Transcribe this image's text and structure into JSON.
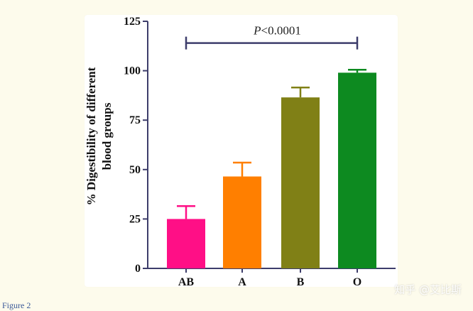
{
  "chart_data": {
    "type": "bar",
    "categories": [
      "AB",
      "A",
      "B",
      "O"
    ],
    "values": [
      25,
      46.5,
      86.5,
      99
    ],
    "errors": [
      6.5,
      7,
      5,
      1.5
    ],
    "ylabel_lines": [
      "% Digestibility of different",
      "blood groups"
    ],
    "xlabel": "",
    "ylim": [
      0,
      125
    ],
    "yticks": [
      0,
      25,
      50,
      75,
      100,
      125
    ],
    "bar_colors": [
      "#ff0f86",
      "#ff7f00",
      "#808016",
      "#0d8a20"
    ],
    "error_colors": [
      "#ff0f86",
      "#ff7f00",
      "#808016",
      "#0d8a20"
    ],
    "axis_color": "#3d3d6b",
    "annotation": {
      "prefix": "P",
      "text": "<0.0001",
      "from_category": "AB",
      "to_category": "O",
      "y": 114,
      "color": "#3d3d6b"
    },
    "grid": false
  },
  "caption": "Figure 2",
  "watermark": "知乎 @艾比斯"
}
